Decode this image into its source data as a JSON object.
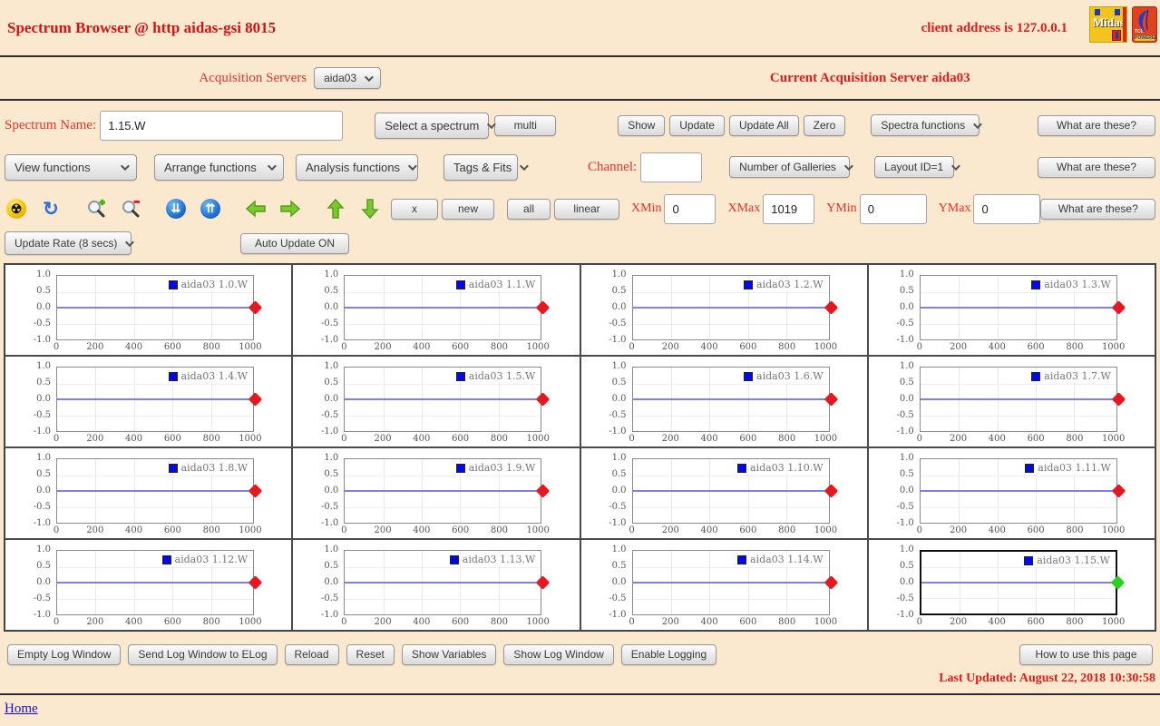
{
  "header": {
    "title": "Spectrum Browser @ http aidas-gsi 8015",
    "client_address": "client address is 127.0.0.1",
    "logos": {
      "midas": "Midas",
      "tcl_line1": "TCL",
      "tcl_line2": "POWERED"
    }
  },
  "acquisition": {
    "label": "Acquisition Servers",
    "server_selected": "aida03",
    "current_text": "Current Acquisition Server aida03"
  },
  "spectrum_row": {
    "label": "Spectrum Name:",
    "value": "1.15.W",
    "select_label": "Select a spectrum",
    "multi_label": "multi",
    "actions": [
      "Show",
      "Update",
      "Update All",
      "Zero"
    ],
    "spectra_functions_label": "Spectra functions",
    "what_are_these": "What are these?"
  },
  "functions_row": {
    "view": "View functions",
    "arrange": "Arrange functions",
    "analysis": "Analysis functions",
    "tags": "Tags & Fits",
    "channel_label": "Channel:",
    "channel_value": "",
    "galleries": "Number of Galleries",
    "layout": "Layout ID=1",
    "what_are_these": "What are these?"
  },
  "toolbar": {
    "icons": [
      "radiation-icon",
      "refresh-icon",
      "zoom-in-icon",
      "zoom-out-icon",
      "collapse-down-icon",
      "expand-up-icon",
      "arrow-left-icon",
      "arrow-right-icon",
      "arrow-up-icon",
      "arrow-down-icon"
    ],
    "buttons": [
      "x",
      "new",
      "all",
      "linear"
    ],
    "ranges": [
      {
        "label": "XMin",
        "value": "0",
        "wide": false
      },
      {
        "label": "XMax",
        "value": "1019",
        "wide": false
      },
      {
        "label": "YMin",
        "value": "0",
        "wide": true
      },
      {
        "label": "YMax",
        "value": "0",
        "wide": true
      }
    ],
    "what_are_these": "What are these?"
  },
  "update_row": {
    "rate_label": "Update Rate (8 secs)",
    "auto_label": "Auto Update ON"
  },
  "charts": {
    "legend_prefix": "aida03",
    "items": [
      "1.0.W",
      "1.1.W",
      "1.2.W",
      "1.3.W",
      "1.4.W",
      "1.5.W",
      "1.6.W",
      "1.7.W",
      "1.8.W",
      "1.9.W",
      "1.10.W",
      "1.11.W",
      "1.12.W",
      "1.13.W",
      "1.14.W",
      "1.15.W"
    ],
    "selected": "1.15.W",
    "y_ticks": [
      "1.0",
      "0.5",
      "0.0",
      "-0.5",
      "-1.0"
    ],
    "x_ticks": [
      0,
      200,
      400,
      600,
      800,
      1000
    ],
    "x_max": 1019,
    "marker_color_default": "#e8161f",
    "marker_color_selected": "#27d41c",
    "line_color": "#7e7ef0",
    "legend_swatch_color": "#0008ee"
  },
  "chart_data": {
    "type": "line",
    "panels": [
      "aida03 1.0.W",
      "aida03 1.1.W",
      "aida03 1.2.W",
      "aida03 1.3.W",
      "aida03 1.4.W",
      "aida03 1.5.W",
      "aida03 1.6.W",
      "aida03 1.7.W",
      "aida03 1.8.W",
      "aida03 1.9.W",
      "aida03 1.10.W",
      "aida03 1.11.W",
      "aida03 1.12.W",
      "aida03 1.13.W",
      "aida03 1.14.W",
      "aida03 1.15.W"
    ],
    "x_range": [
      0,
      1019
    ],
    "y_range": [
      -1.0,
      1.0
    ],
    "x_ticks": [
      0,
      200,
      400,
      600,
      800,
      1000
    ],
    "y_ticks": [
      1.0,
      0.5,
      0.0,
      -0.5,
      -1.0
    ],
    "series_note": "each panel shows a constant y=0 line from x=0 to x=1019 with a diamond marker at (1019, 0)",
    "grid": true,
    "legend_position": "top-right"
  },
  "footer": {
    "buttons": [
      "Empty Log Window",
      "Send Log Window to ELog",
      "Reload",
      "Reset",
      "Show Variables",
      "Show Log Window",
      "Enable Logging"
    ],
    "help_button": "How to use this page",
    "last_updated": "Last Updated: August 22, 2018 10:30:58",
    "dot": ".",
    "home": "Home"
  }
}
